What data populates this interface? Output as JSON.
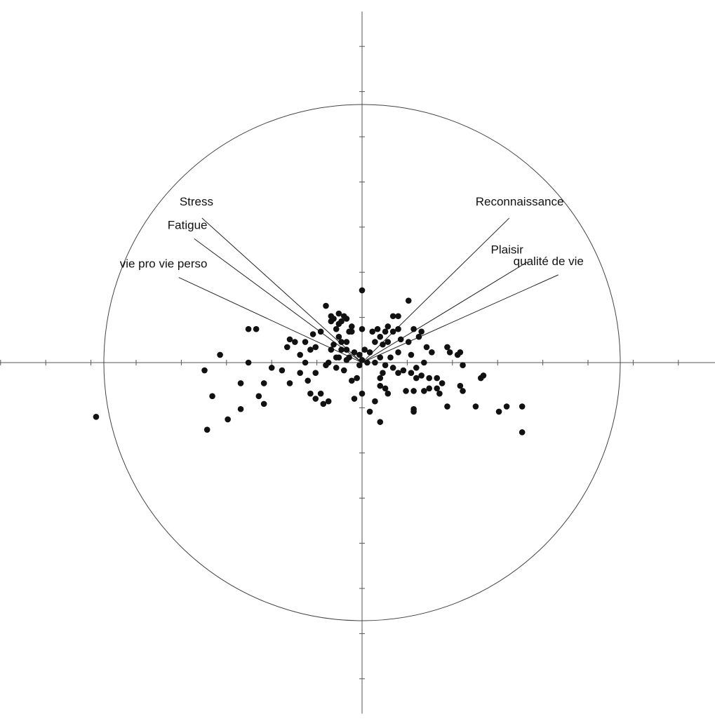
{
  "chart_data": {
    "type": "scatter",
    "title": "",
    "xlabel": "",
    "ylabel": "",
    "xlim": [
      -1.42,
      1.42
    ],
    "ylim": [
      -1.36,
      1.36
    ],
    "grid": false,
    "legend": "none",
    "circle_radius": 1.0,
    "tick_step": 0.175,
    "colors": {
      "axis": "#555555",
      "circle": "#444444",
      "points": "#111111",
      "vectors": "#222222"
    },
    "vectors": [
      {
        "label": "Stress",
        "x": -0.62,
        "y": 0.56
      },
      {
        "label": "Fatigue",
        "x": -0.65,
        "y": 0.48
      },
      {
        "label": "vie pro vie perso",
        "x": -0.71,
        "y": 0.33
      },
      {
        "label": "Reconnaissance",
        "x": 0.57,
        "y": 0.56
      },
      {
        "label": "Plaisir",
        "x": 0.64,
        "y": 0.39
      },
      {
        "label": "qualité de vie",
        "x": 0.76,
        "y": 0.34
      }
    ],
    "points": [
      [
        -1.03,
        -0.21
      ],
      [
        -0.6,
        -0.26
      ],
      [
        -0.52,
        -0.22
      ],
      [
        -0.47,
        -0.18
      ],
      [
        -0.58,
        -0.13
      ],
      [
        -0.38,
        -0.16
      ],
      [
        -0.4,
        -0.13
      ],
      [
        -0.38,
        -0.08
      ],
      [
        -0.47,
        -0.08
      ],
      [
        -0.61,
        -0.03
      ],
      [
        -0.55,
        0.03
      ],
      [
        -0.44,
        0.0
      ],
      [
        -0.35,
        -0.02
      ],
      [
        -0.31,
        -0.03
      ],
      [
        -0.28,
        -0.08
      ],
      [
        -0.24,
        -0.04
      ],
      [
        -0.21,
        -0.07
      ],
      [
        -0.18,
        -0.14
      ],
      [
        -0.16,
        -0.12
      ],
      [
        -0.15,
        -0.16
      ],
      [
        -0.13,
        -0.15
      ],
      [
        -0.2,
        -0.12
      ],
      [
        -0.14,
        -0.01
      ],
      [
        -0.18,
        -0.04
      ],
      [
        -0.22,
        0.0
      ],
      [
        -0.24,
        0.03
      ],
      [
        -0.29,
        0.06
      ],
      [
        -0.26,
        0.08
      ],
      [
        -0.2,
        0.05
      ],
      [
        -0.18,
        0.06
      ],
      [
        -0.44,
        0.13
      ],
      [
        -0.41,
        0.13
      ],
      [
        -0.28,
        0.09
      ],
      [
        -0.22,
        0.08
      ],
      [
        -0.19,
        0.11
      ],
      [
        -0.16,
        0.12
      ],
      [
        -0.14,
        0.22
      ],
      [
        -0.12,
        0.16
      ],
      [
        -0.1,
        0.13
      ],
      [
        -0.09,
        0.1
      ],
      [
        -0.11,
        0.07
      ],
      [
        -0.08,
        0.08
      ],
      [
        -0.05,
        0.12
      ],
      [
        -0.06,
        0.05
      ],
      [
        -0.03,
        0.04
      ],
      [
        -0.01,
        0.03
      ],
      [
        -0.05,
        0.02
      ],
      [
        -0.06,
        0.01
      ],
      [
        -0.07,
        -0.03
      ],
      [
        -0.04,
        -0.07
      ],
      [
        -0.02,
        -0.06
      ],
      [
        -0.1,
        0.02
      ],
      [
        -0.13,
        0.0
      ],
      [
        -0.1,
        -0.02
      ],
      [
        -0.12,
        0.05
      ],
      [
        -0.09,
        0.02
      ],
      [
        -0.08,
        0.05
      ],
      [
        -0.06,
        0.08
      ],
      [
        -0.04,
        0.12
      ],
      [
        -0.04,
        0.14
      ],
      [
        -0.06,
        0.17
      ],
      [
        -0.08,
        0.16
      ],
      [
        -0.09,
        0.15
      ],
      [
        -0.11,
        0.17
      ],
      [
        -0.12,
        0.18
      ],
      [
        -0.09,
        0.19
      ],
      [
        -0.07,
        0.18
      ],
      [
        0.0,
        0.28
      ],
      [
        0.0,
        0.13
      ],
      [
        0.01,
        0.05
      ],
      [
        0.0,
        0.01
      ],
      [
        -0.01,
        -0.01
      ],
      [
        0.02,
        0.0
      ],
      [
        0.03,
        0.04
      ],
      [
        0.05,
        0.08
      ],
      [
        0.04,
        0.12
      ],
      [
        0.06,
        0.13
      ],
      [
        0.07,
        0.1
      ],
      [
        0.08,
        0.07
      ],
      [
        0.1,
        0.08
      ],
      [
        0.09,
        0.12
      ],
      [
        0.1,
        0.14
      ],
      [
        0.12,
        0.12
      ],
      [
        0.14,
        0.13
      ],
      [
        0.12,
        0.18
      ],
      [
        0.14,
        0.18
      ],
      [
        0.18,
        0.24
      ],
      [
        0.15,
        0.09
      ],
      [
        0.18,
        0.08
      ],
      [
        0.2,
        0.13
      ],
      [
        0.22,
        0.1
      ],
      [
        0.23,
        0.12
      ],
      [
        0.25,
        0.06
      ],
      [
        0.27,
        0.04
      ],
      [
        0.19,
        0.03
      ],
      [
        0.14,
        0.04
      ],
      [
        0.11,
        0.02
      ],
      [
        0.07,
        0.02
      ],
      [
        0.05,
        0.0
      ],
      [
        0.09,
        -0.01
      ],
      [
        0.12,
        -0.02
      ],
      [
        0.14,
        -0.04
      ],
      [
        0.16,
        -0.03
      ],
      [
        0.19,
        -0.04
      ],
      [
        0.21,
        -0.06
      ],
      [
        0.23,
        -0.05
      ],
      [
        0.26,
        -0.06
      ],
      [
        0.29,
        -0.06
      ],
      [
        0.31,
        -0.08
      ],
      [
        0.29,
        -0.1
      ],
      [
        0.26,
        -0.1
      ],
      [
        0.24,
        -0.11
      ],
      [
        0.2,
        -0.11
      ],
      [
        0.17,
        -0.11
      ],
      [
        0.21,
        -0.02
      ],
      [
        0.24,
        0.0
      ],
      [
        0.08,
        -0.04
      ],
      [
        0.07,
        -0.06
      ],
      [
        0.07,
        -0.09
      ],
      [
        0.09,
        -0.1
      ],
      [
        0.1,
        -0.12
      ],
      [
        0.05,
        -0.15
      ],
      [
        0.03,
        -0.19
      ],
      [
        0.0,
        -0.12
      ],
      [
        -0.03,
        -0.14
      ],
      [
        0.07,
        -0.23
      ],
      [
        0.2,
        -0.18
      ],
      [
        0.2,
        -0.19
      ],
      [
        0.33,
        -0.17
      ],
      [
        0.3,
        -0.12
      ],
      [
        0.39,
        -0.01
      ],
      [
        0.37,
        0.03
      ],
      [
        0.38,
        0.04
      ],
      [
        0.33,
        0.06
      ],
      [
        0.34,
        0.04
      ],
      [
        0.38,
        -0.09
      ],
      [
        0.39,
        -0.11
      ],
      [
        0.47,
        -0.05
      ],
      [
        0.46,
        -0.06
      ],
      [
        0.44,
        -0.17
      ],
      [
        0.53,
        -0.19
      ],
      [
        0.56,
        -0.17
      ],
      [
        0.62,
        -0.17
      ],
      [
        0.62,
        -0.27
      ]
    ]
  }
}
